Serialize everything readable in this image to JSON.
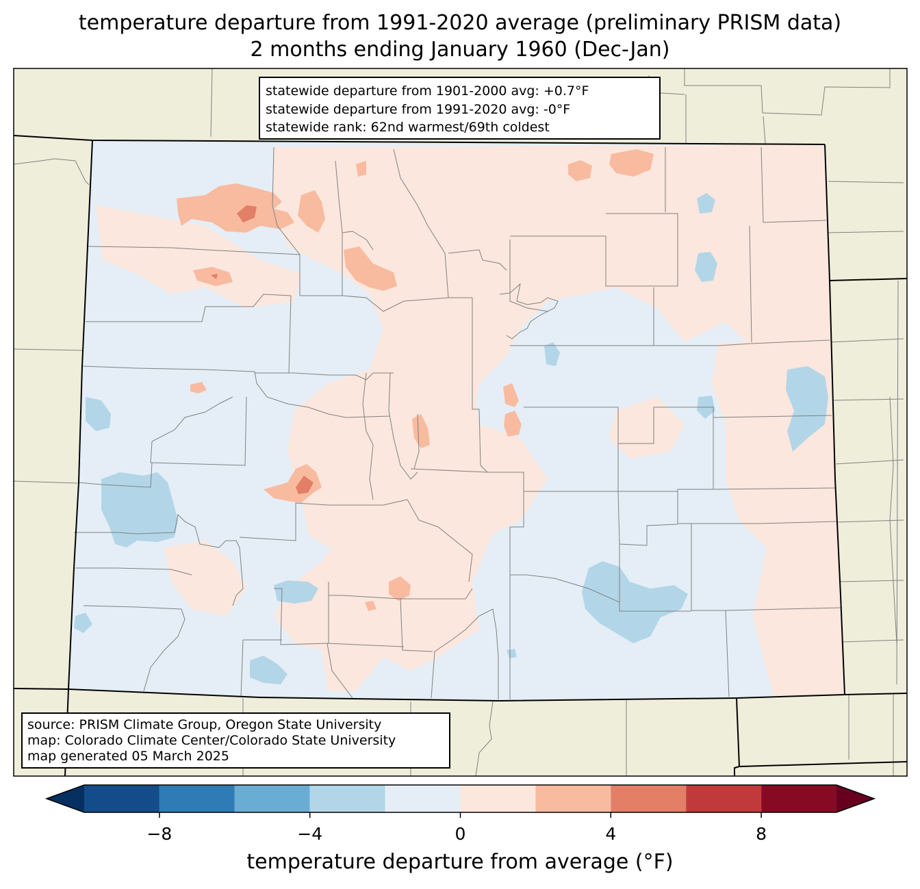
{
  "title": {
    "line1": "temperature departure from 1991-2020 average (preliminary PRISM data)",
    "line2": "2 months ending January 1960 (Dec-Jan)"
  },
  "stats": {
    "line1": "statewide departure from 1901-2000 avg: +0.7°F",
    "line2": "statewide departure from 1991-2020 avg: -0°F",
    "line3": "statewide rank: 62nd warmest/69th coldest"
  },
  "source": {
    "line1": "source: PRISM Climate Group, Oregon State University",
    "line2": "map: Colorado Climate Center/Colorado State University",
    "line3": "map generated 05 March 2025"
  },
  "colorbar": {
    "label": "temperature departure from average (°F)",
    "ticks": [
      "−8",
      "−4",
      "0",
      "4",
      "8"
    ],
    "tick_values": [
      -8,
      -4,
      0,
      4,
      8
    ],
    "range": [
      -10,
      10
    ],
    "step": 2,
    "colors": [
      "#053061",
      "#134c89",
      "#2f7bb6",
      "#6aadd4",
      "#b2d6e8",
      "#e5eef6",
      "#fbe7dd",
      "#f8bba0",
      "#e27f66",
      "#c13a3b",
      "#870a25",
      "#67001f"
    ]
  },
  "map": {
    "background_color": "#efeedb",
    "boundary_color": "#808080"
  }
}
